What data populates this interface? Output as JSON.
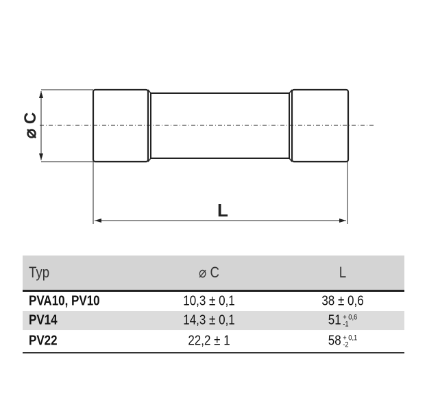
{
  "drawing": {
    "diameter_label": "⌀ C",
    "length_label": "L"
  },
  "table": {
    "headers": [
      "Typ",
      "⌀ C",
      "L"
    ],
    "rows": [
      {
        "typ": "PVA10, PV10",
        "c": "10,3 ± 0,1",
        "l": "38 ± 0,6",
        "l_plus": "",
        "l_minus": ""
      },
      {
        "typ": "PV14",
        "c": "14,3 ± 0,1",
        "l": "51",
        "l_plus": "+ 0,6",
        "l_minus": "-1"
      },
      {
        "typ": "PV22",
        "c": "22,2 ± 1",
        "l": "58",
        "l_plus": "+ 0,1",
        "l_minus": "-2"
      }
    ]
  }
}
